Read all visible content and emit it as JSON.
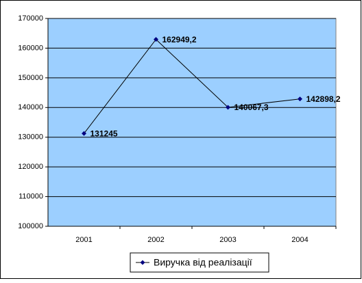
{
  "chart_data": {
    "type": "line",
    "categories": [
      "2001",
      "2002",
      "2003",
      "2004"
    ],
    "series": [
      {
        "name": "Виручка від реалізації",
        "color": "#000080",
        "values": [
          131245,
          162949.2,
          140067.3,
          142898.2
        ],
        "value_labels": [
          "131245",
          "162949,2",
          "140067,3",
          "142898,2"
        ]
      }
    ],
    "ylim": [
      100000,
      170000
    ],
    "yticks": [
      100000,
      110000,
      120000,
      130000,
      140000,
      150000,
      160000,
      170000
    ],
    "grid": true,
    "legend": "bottom",
    "plot_background": "#9ccfff"
  }
}
